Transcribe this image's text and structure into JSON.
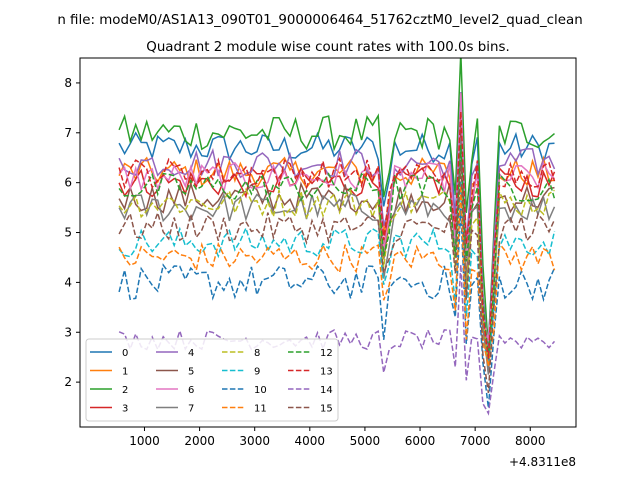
{
  "suptitle": "n file: modeM0/AS1A13_090T01_9000006464_51762cztM0_level2_quad_clean",
  "chart_data": {
    "type": "line",
    "title": "Quadrant 2 module wise count rates with 100.0s bins.",
    "xlabel": "",
    "ylabel": "",
    "x_offset_label": "+4.8311e8",
    "xlim": [
      -170,
      8830
    ],
    "ylim": [
      1.1,
      8.5
    ],
    "xticks": [
      1000,
      2000,
      3000,
      4000,
      5000,
      6000,
      7000,
      8000
    ],
    "yticks": [
      2,
      3,
      4,
      5,
      6,
      7,
      8
    ],
    "x": {
      "start": 540,
      "step": 100,
      "count": 80
    },
    "grid": false,
    "legend_position": "lower-left",
    "series": [
      {
        "name": "0",
        "color": "#1f77b4",
        "dash": "solid",
        "base": 6.7,
        "amp": 0.3
      },
      {
        "name": "1",
        "color": "#ff7f0e",
        "dash": "solid",
        "base": 6.2,
        "amp": 0.3
      },
      {
        "name": "2",
        "color": "#2ca02c",
        "dash": "solid",
        "base": 7.0,
        "amp": 0.35
      },
      {
        "name": "3",
        "color": "#d62728",
        "dash": "solid",
        "base": 6.0,
        "amp": 0.3
      },
      {
        "name": "4",
        "color": "#9467bd",
        "dash": "solid",
        "base": 6.4,
        "amp": 0.3
      },
      {
        "name": "5",
        "color": "#8c564b",
        "dash": "solid",
        "base": 5.7,
        "amp": 0.3
      },
      {
        "name": "6",
        "color": "#e377c2",
        "dash": "solid",
        "base": 6.1,
        "amp": 0.3
      },
      {
        "name": "7",
        "color": "#7f7f7f",
        "dash": "solid",
        "base": 5.5,
        "amp": 0.3
      },
      {
        "name": "8",
        "color": "#bcbd22",
        "dash": "dashed",
        "base": 5.6,
        "amp": 0.3
      },
      {
        "name": "9",
        "color": "#17becf",
        "dash": "dashed",
        "base": 4.8,
        "amp": 0.3
      },
      {
        "name": "10",
        "color": "#1f77b4",
        "dash": "dashed",
        "base": 4.0,
        "amp": 0.35
      },
      {
        "name": "11",
        "color": "#ff7f0e",
        "dash": "dashed",
        "base": 4.5,
        "amp": 0.3
      },
      {
        "name": "12",
        "color": "#2ca02c",
        "dash": "dashed",
        "base": 5.9,
        "amp": 0.3
      },
      {
        "name": "13",
        "color": "#d62728",
        "dash": "dashed",
        "base": 6.2,
        "amp": 0.3
      },
      {
        "name": "14",
        "color": "#9467bd",
        "dash": "dashed",
        "base": 2.85,
        "amp": 0.2
      },
      {
        "name": "15",
        "color": "#8c564b",
        "dash": "dashed",
        "base": 5.1,
        "amp": 0.3
      }
    ],
    "dips": [
      {
        "x": 5340,
        "depth": 0.22
      },
      {
        "x": 5440,
        "depth": 0.12
      },
      {
        "x": 6640,
        "depth": 0.2
      },
      {
        "x": 6740,
        "spike": 1.6
      },
      {
        "x": 6840,
        "depth": 0.3
      },
      {
        "x": 6940,
        "depth": 0.05
      },
      {
        "x": 7140,
        "depth": 0.45
      },
      {
        "x": 7240,
        "depth": 0.58
      },
      {
        "x": 7340,
        "depth": 0.3
      }
    ]
  }
}
